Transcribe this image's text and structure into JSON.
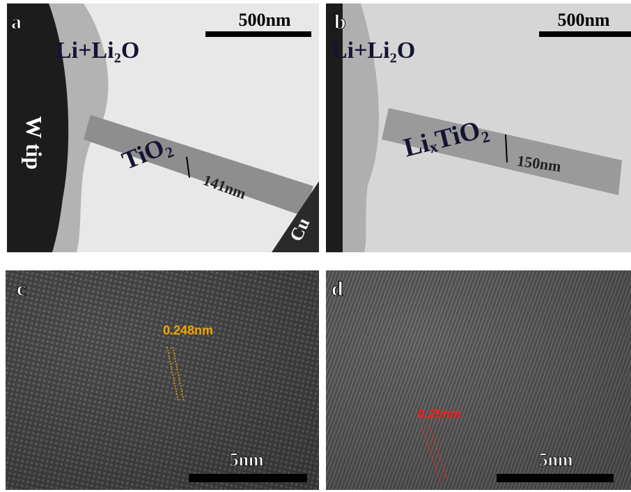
{
  "panels": [
    {
      "label": "a",
      "scale_bar": "500nm",
      "annotations": [
        "Li+Li₂O",
        "W tip",
        "TiO₂",
        "141nm",
        "Cu"
      ]
    },
    {
      "label": "b",
      "scale_bar": "500nm",
      "annotations": [
        "Li+Li₂O",
        "LiₓTiO₂",
        "150nm"
      ]
    },
    {
      "label": "c",
      "scale_bar": "5nm",
      "annotations": [
        "0.248nm"
      ]
    },
    {
      "label": "d",
      "scale_bar": "5nm",
      "annotations": [
        "0.25nm"
      ]
    }
  ]
}
